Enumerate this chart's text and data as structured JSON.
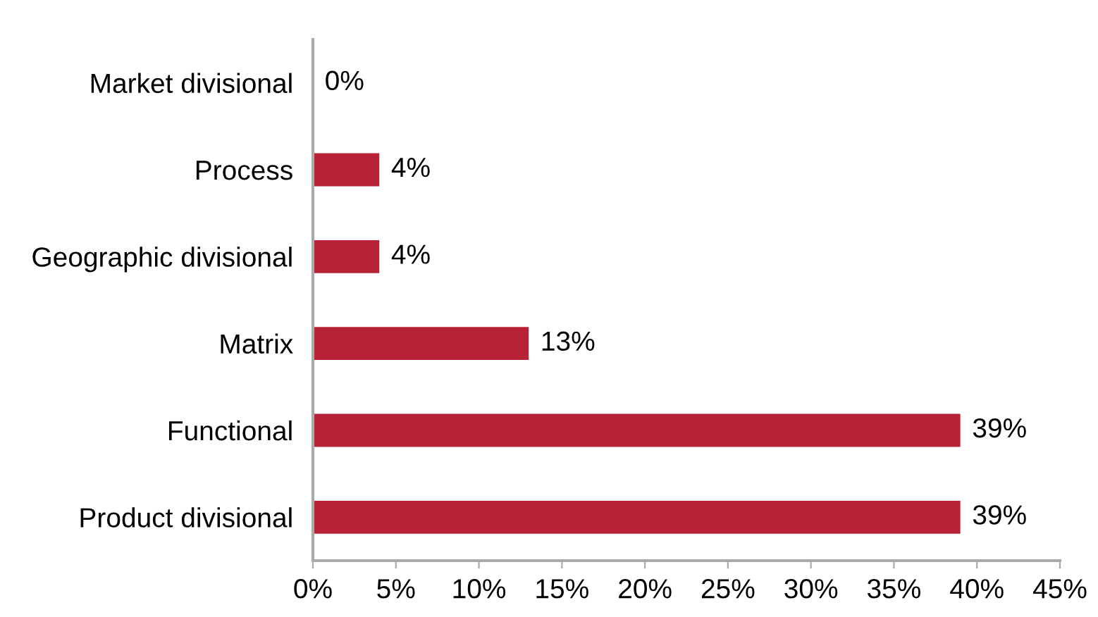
{
  "chart_data": {
    "type": "bar",
    "orientation": "horizontal",
    "categories": [
      "Market divisional",
      "Process",
      "Geographic divisional",
      "Matrix",
      "Functional",
      "Product divisional"
    ],
    "values": [
      0,
      4,
      4,
      13,
      39,
      39
    ],
    "value_labels": [
      "0%",
      "4%",
      "4%",
      "13%",
      "39%",
      "39%"
    ],
    "color": "#b82236",
    "xlim": [
      0,
      45
    ],
    "xticks": [
      {
        "value": 0,
        "label": "0%"
      },
      {
        "value": 5,
        "label": "5%"
      },
      {
        "value": 10,
        "label": "10%"
      },
      {
        "value": 15,
        "label": "15%"
      },
      {
        "value": 20,
        "label": "20%"
      },
      {
        "value": 25,
        "label": "25%"
      },
      {
        "value": 30,
        "label": "30%"
      },
      {
        "value": 35,
        "label": "35%"
      },
      {
        "value": 40,
        "label": "40%"
      },
      {
        "value": 45,
        "label": "45%"
      }
    ],
    "grid": false,
    "legend": false
  }
}
